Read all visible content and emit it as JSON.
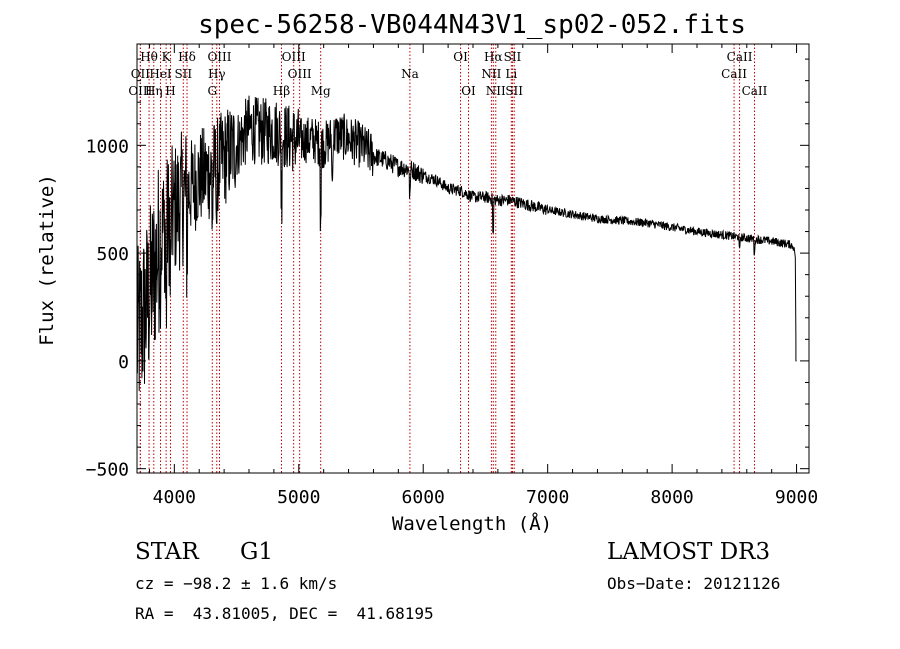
{
  "chart_data": {
    "type": "line",
    "title": "spec-56258-VB044N43V1_sp02-052.fits",
    "xlabel": "Wavelength (Å)",
    "ylabel": "Flux (relative)",
    "xlim": [
      3700,
      9100
    ],
    "ylim": [
      -520,
      1470
    ],
    "xticks": [
      4000,
      5000,
      6000,
      7000,
      8000,
      9000
    ],
    "yticks": [
      -500,
      0,
      500,
      1000
    ],
    "xtick_labels": [
      "4000",
      "5000",
      "6000",
      "7000",
      "8000",
      "9000"
    ],
    "ytick_labels": [
      "−500",
      "0",
      "500",
      "1000"
    ],
    "spectrum_anchors": [
      [
        3700,
        100
      ],
      [
        3800,
        300
      ],
      [
        3900,
        600
      ],
      [
        4000,
        700
      ],
      [
        4100,
        780
      ],
      [
        4200,
        850
      ],
      [
        4300,
        880
      ],
      [
        4400,
        940
      ],
      [
        4500,
        1000
      ],
      [
        4600,
        1080
      ],
      [
        4700,
        1060
      ],
      [
        4800,
        1070
      ],
      [
        4900,
        1040
      ],
      [
        5000,
        1020
      ],
      [
        5100,
        1030
      ],
      [
        5200,
        1000
      ],
      [
        5300,
        1050
      ],
      [
        5400,
        1030
      ],
      [
        5500,
        1000
      ],
      [
        5600,
        950
      ],
      [
        5700,
        930
      ],
      [
        5800,
        900
      ],
      [
        5900,
        890
      ],
      [
        6000,
        860
      ],
      [
        6100,
        840
      ],
      [
        6200,
        800
      ],
      [
        6300,
        790
      ],
      [
        6400,
        760
      ],
      [
        6500,
        760
      ],
      [
        6600,
        745
      ],
      [
        6700,
        745
      ],
      [
        6800,
        730
      ],
      [
        6900,
        715
      ],
      [
        7000,
        700
      ],
      [
        7200,
        680
      ],
      [
        7400,
        660
      ],
      [
        7600,
        650
      ],
      [
        7800,
        640
      ],
      [
        8000,
        620
      ],
      [
        8200,
        600
      ],
      [
        8400,
        585
      ],
      [
        8600,
        570
      ],
      [
        8800,
        555
      ],
      [
        8950,
        540
      ],
      [
        9000,
        520
      ]
    ],
    "spectral_lines": [
      {
        "label": "Hθ",
        "x": 3797,
        "row": 1
      },
      {
        "label": "OII",
        "x": 3727,
        "row": 2
      },
      {
        "label": "OIII",
        "x": 3727,
        "row": 3
      },
      {
        "label": "K",
        "x": 3934,
        "row": 1
      },
      {
        "label": "H",
        "x": 3969,
        "row": 3
      },
      {
        "label": "HeI",
        "x": 3889,
        "row": 2
      },
      {
        "label": "Hη",
        "x": 3835,
        "row": 3
      },
      {
        "label": "SII",
        "x": 4072,
        "row": 2
      },
      {
        "label": "Hδ",
        "x": 4102,
        "row": 1
      },
      {
        "label": "OIII",
        "x": 4363,
        "row": 1
      },
      {
        "label": "Hγ",
        "x": 4341,
        "row": 2
      },
      {
        "label": "G",
        "x": 4305,
        "row": 3
      },
      {
        "label": "Hβ",
        "x": 4861,
        "row": 3
      },
      {
        "label": "OIII",
        "x": 4959,
        "row": 1
      },
      {
        "label": "OIII",
        "x": 5007,
        "row": 2
      },
      {
        "label": "Mg",
        "x": 5176,
        "row": 3
      },
      {
        "label": "Na",
        "x": 5893,
        "row": 2
      },
      {
        "label": "OI",
        "x": 6300,
        "row": 1
      },
      {
        "label": "OI",
        "x": 6364,
        "row": 3
      },
      {
        "label": "Hα",
        "x": 6563,
        "row": 1
      },
      {
        "label": "NII",
        "x": 6548,
        "row": 2
      },
      {
        "label": "NII",
        "x": 6583,
        "row": 3
      },
      {
        "label": "SII",
        "x": 6717,
        "row": 1
      },
      {
        "label": "Li",
        "x": 6708,
        "row": 2
      },
      {
        "label": "SII",
        "x": 6731,
        "row": 3
      },
      {
        "label": "CaII",
        "x": 8542,
        "row": 1
      },
      {
        "label": "CaII",
        "x": 8498,
        "row": 2
      },
      {
        "label": "CaII",
        "x": 8662,
        "row": 3
      }
    ]
  },
  "info": {
    "object_class": "STAR",
    "subclass": "G1",
    "survey": "LAMOST DR3",
    "cz": "cz = −98.2 ± 1.6 km/s",
    "obs_date": "Obs−Date: 20121126",
    "coords": "RA =  43.81005, DEC =  41.68195"
  },
  "colors": {
    "spectrum": "#000000",
    "line_marker": "#c00000"
  }
}
